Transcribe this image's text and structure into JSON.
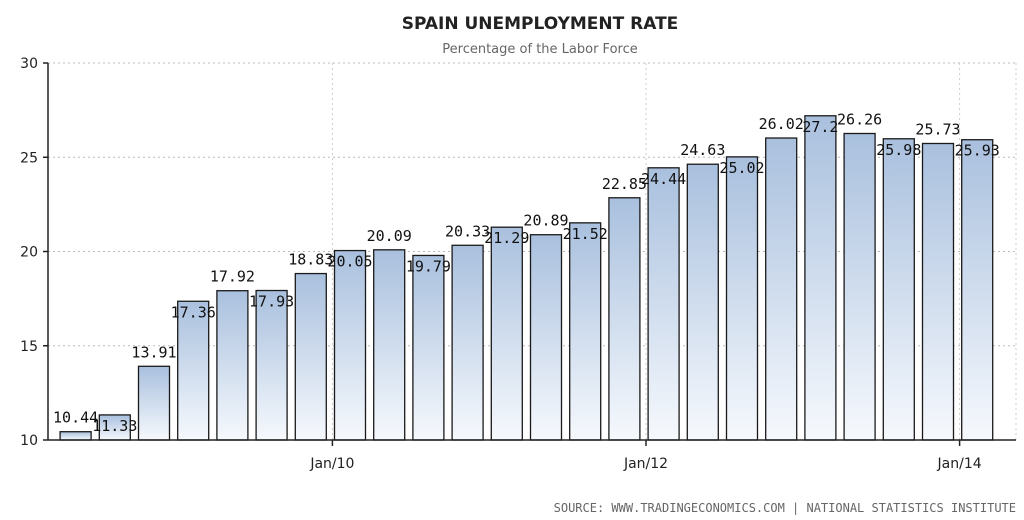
{
  "chart_data": {
    "type": "bar",
    "title": "SPAIN UNEMPLOYMENT RATE",
    "subtitle": "Percentage of the Labor Force",
    "xlabel": "",
    "ylabel": "",
    "ylim": [
      10,
      30
    ],
    "yticks": [
      "10",
      "15",
      "20",
      "25",
      "30"
    ],
    "xtick_labels": [
      {
        "label": "Jan/10",
        "at_bar": 7
      },
      {
        "label": "Jan/12",
        "at_bar": 15
      },
      {
        "label": "Jan/14",
        "at_bar": 23
      }
    ],
    "grid": true,
    "legend": "none",
    "bar_color": "#b7cce6",
    "values": [
      10.44,
      11.33,
      13.91,
      17.36,
      17.92,
      17.93,
      18.83,
      20.05,
      20.09,
      19.79,
      20.33,
      21.29,
      20.89,
      21.52,
      22.85,
      24.44,
      24.63,
      25.02,
      26.02,
      27.2,
      26.26,
      25.98,
      25.73,
      25.93
    ],
    "labels": [
      "10.44",
      "11.33",
      "13.91",
      "17.36",
      "17.92",
      "17.93",
      "18.83",
      "20.05",
      "20.09",
      "19.79",
      "20.33",
      "21.29",
      "20.89",
      "21.52",
      "22.85",
      "24.44",
      "24.63",
      "25.02",
      "26.02",
      "27.2",
      "26.26",
      "25.98",
      "25.73",
      "25.93"
    ]
  },
  "source": "SOURCE: WWW.TRADINGECONOMICS.COM  |  NATIONAL STATISTICS INSTITUTE"
}
